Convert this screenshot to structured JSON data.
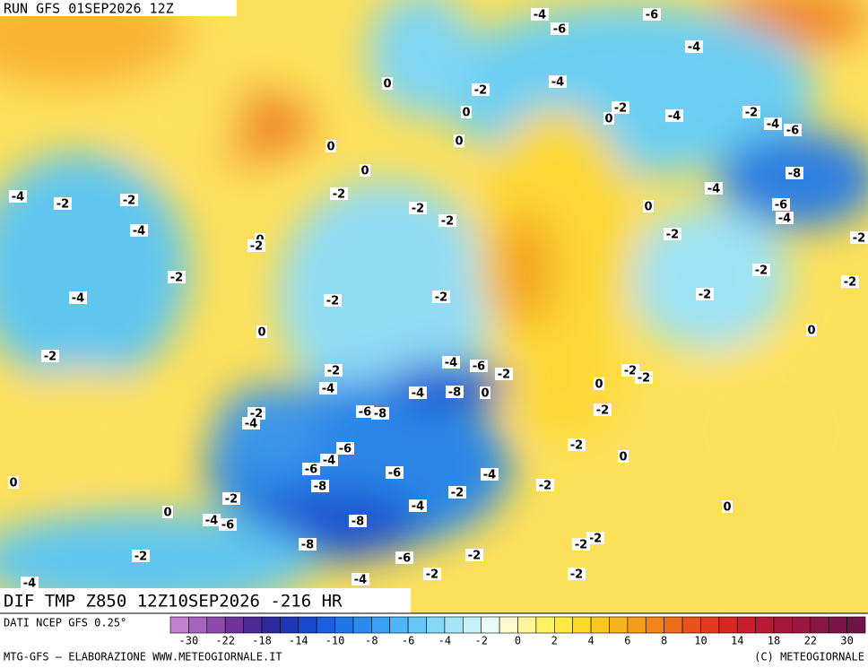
{
  "header": {
    "run": "RUN GFS 01SEP2026 12Z"
  },
  "title": "DIF TMP Z850 12Z10SEP2026 -216 HR",
  "source": "DATI NCEP GFS 0.25°",
  "footer": {
    "left": "MTG-GFS — ELABORAZIONE WWW.METEOGIORNALE.IT",
    "right": "(C) METEOGIORNALE"
  },
  "colorbar": {
    "labels": [
      "-30",
      "-22",
      "-18",
      "-14",
      "-10",
      "-8",
      "-6",
      "-4",
      "-2",
      "0",
      "2",
      "4",
      "6",
      "8",
      "10",
      "14",
      "18",
      "22",
      "30"
    ]
  },
  "map_labels": [
    "-4",
    "-6",
    "-6",
    "-4",
    "-4",
    "0",
    "-2",
    "0",
    "-2",
    "0",
    "-4",
    "-2",
    "-4",
    "-6",
    "0",
    "0",
    "0",
    "-8",
    "-4",
    "-2",
    "-4",
    "-2",
    "-2",
    "-2",
    "0",
    "-6",
    "-4",
    "-2",
    "-4",
    "-2",
    "-2",
    "0",
    "-2",
    "-2",
    "-2",
    "-2",
    "-4",
    "-2",
    "-2",
    "-2",
    "0",
    "0",
    "-2",
    "-4",
    "-6",
    "-2",
    "-2",
    "-2",
    "-2",
    "-4",
    "-4",
    "-8",
    "0",
    "0",
    "-2",
    "-6",
    "-8",
    "-4",
    "-2",
    "-2",
    "-6",
    "-4",
    "0",
    "-6",
    "-6",
    "-4",
    "0",
    "-8",
    "-2",
    "-2",
    "-2",
    "-4",
    "0",
    "0",
    "-4",
    "-6",
    "-8",
    "-2",
    "-2",
    "-8",
    "-2",
    "-6",
    "-2",
    "-2",
    "-4",
    "-2",
    "-4"
  ]
}
